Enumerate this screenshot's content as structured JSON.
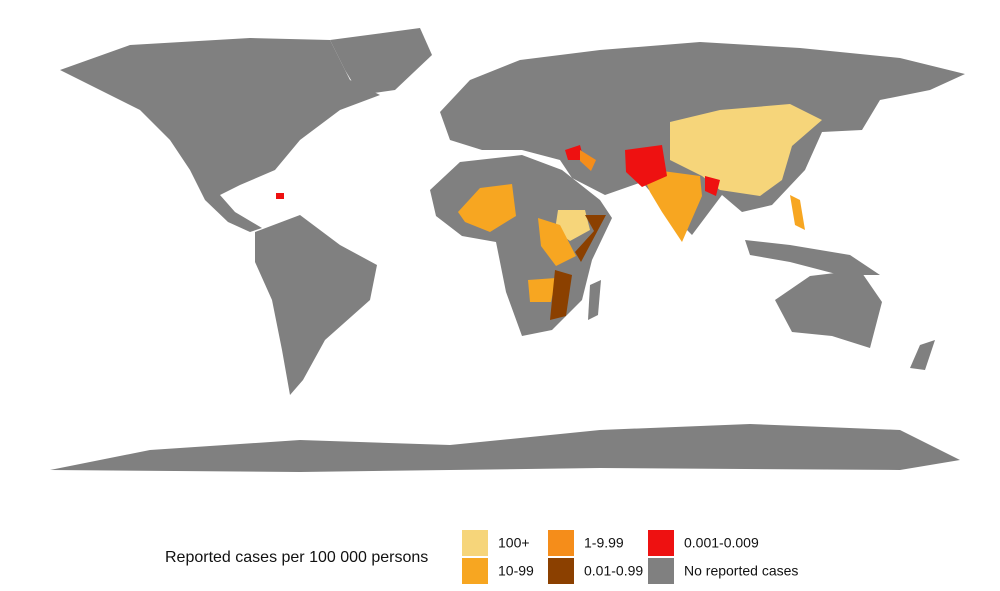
{
  "legend": {
    "title": "Reported cases per 100 000 persons",
    "items": [
      {
        "label": "100+",
        "color": "#f6d57a"
      },
      {
        "label": "10-99",
        "color": "#f7a621"
      },
      {
        "label": "1-9.99",
        "color": "#f58d1a"
      },
      {
        "label": "0.01-0.99",
        "color": "#8b4000"
      },
      {
        "label": "0.001-0.009",
        "color": "#ee1111"
      },
      {
        "label": "No reported cases",
        "color": "#808080"
      }
    ]
  }
}
